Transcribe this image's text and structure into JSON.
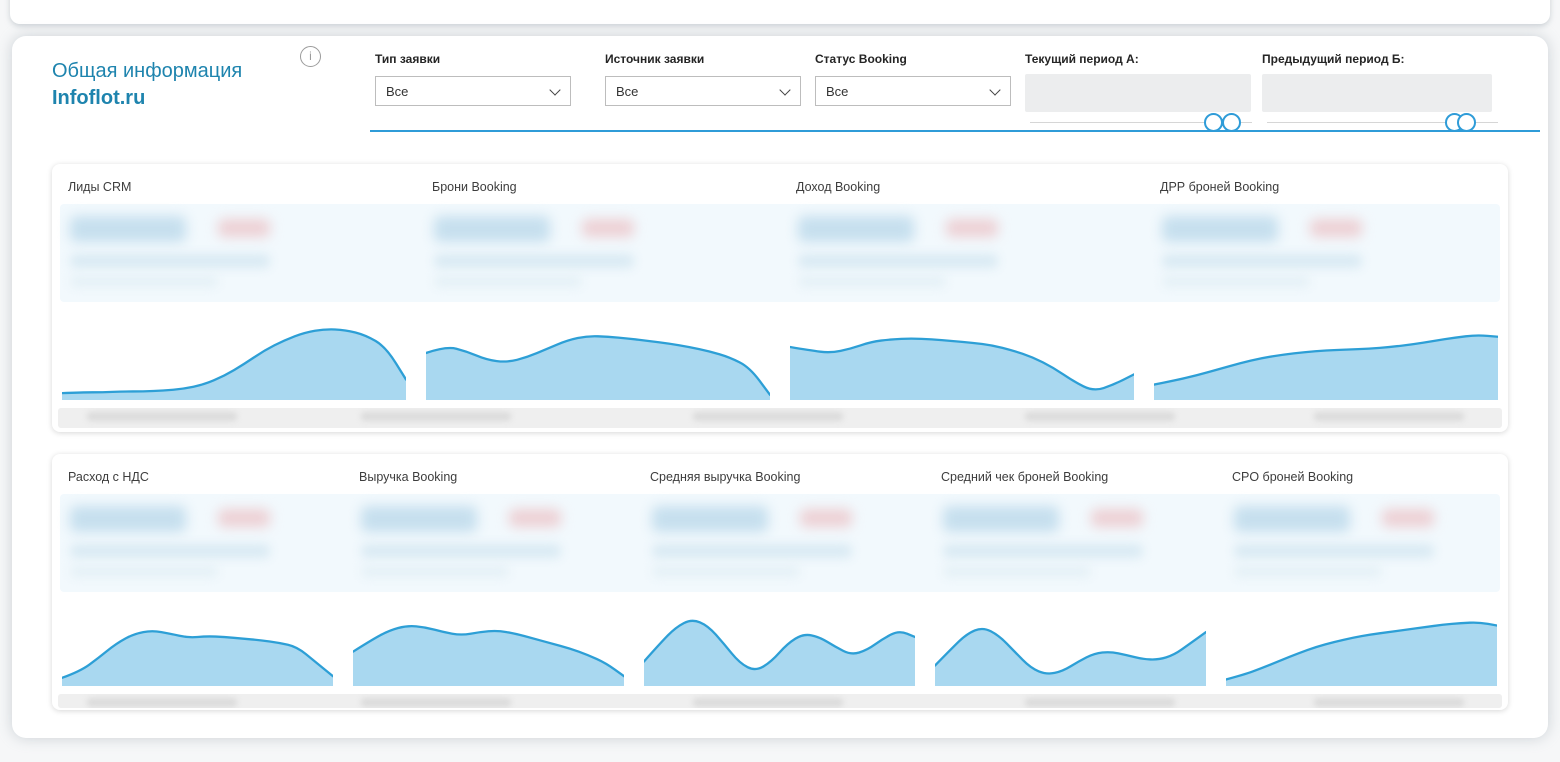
{
  "colors": {
    "accent": "#1e84ae",
    "divider": "#2f9cd8",
    "spark_fill": "#a9d8f0",
    "spark_stroke": "#2d9fd6"
  },
  "header": {
    "title_line1": "Общая информация",
    "title_line2": "Infoflot.ru",
    "info_icon_glyph": "i",
    "filters": [
      {
        "label": "Тип заявки",
        "value": "Все"
      },
      {
        "label": "Источник заявки",
        "value": "Все"
      },
      {
        "label": "Статус Booking",
        "value": "Все"
      }
    ],
    "period_a": {
      "label": "Текущий период А:"
    },
    "period_b": {
      "label": "Предыдущий период Б:"
    }
  },
  "cards_row1": [
    {
      "title": "Лиды CRM",
      "spark": [
        8,
        9,
        9,
        10,
        10,
        11,
        13,
        18,
        28,
        42,
        58,
        70,
        79,
        83,
        82,
        76,
        62,
        24
      ]
    },
    {
      "title": "Брони Booking",
      "spark": [
        55,
        63,
        57,
        47,
        44,
        50,
        60,
        70,
        75,
        74,
        72,
        69,
        66,
        62,
        57,
        50,
        38,
        6
      ]
    },
    {
      "title": "Доход Booking",
      "spark": [
        62,
        58,
        55,
        60,
        68,
        71,
        72,
        71,
        69,
        67,
        64,
        58,
        50,
        38,
        22,
        10,
        18,
        30
      ]
    },
    {
      "title": "ДРР броней Booking",
      "spark": [
        18,
        23,
        29,
        36,
        43,
        49,
        53,
        56,
        58,
        59,
        60,
        62,
        65,
        69,
        73,
        76,
        74
      ]
    }
  ],
  "cards_row2": [
    {
      "title": "Расход с НДС",
      "spark": [
        10,
        18,
        34,
        52,
        64,
        68,
        64,
        59,
        61,
        60,
        58,
        56,
        53,
        48,
        30,
        12
      ]
    },
    {
      "title": "Выручка Booking",
      "spark": [
        42,
        56,
        68,
        74,
        72,
        66,
        62,
        66,
        68,
        64,
        58,
        52,
        46,
        38,
        28,
        12
      ]
    },
    {
      "title": "Средняя выручка Booking",
      "spark": [
        30,
        52,
        72,
        82,
        74,
        52,
        28,
        18,
        30,
        52,
        64,
        60,
        48,
        38,
        44,
        58,
        68,
        60
      ]
    },
    {
      "title": "Средний чек броней Booking",
      "spark": [
        25,
        45,
        64,
        72,
        62,
        42,
        22,
        14,
        18,
        30,
        40,
        42,
        38,
        33,
        32,
        38,
        52,
        66
      ]
    },
    {
      "title": "CPO броней Booking",
      "spark": [
        8,
        14,
        22,
        31,
        40,
        48,
        54,
        59,
        63,
        66,
        69,
        72,
        75,
        77,
        78,
        74
      ]
    }
  ]
}
